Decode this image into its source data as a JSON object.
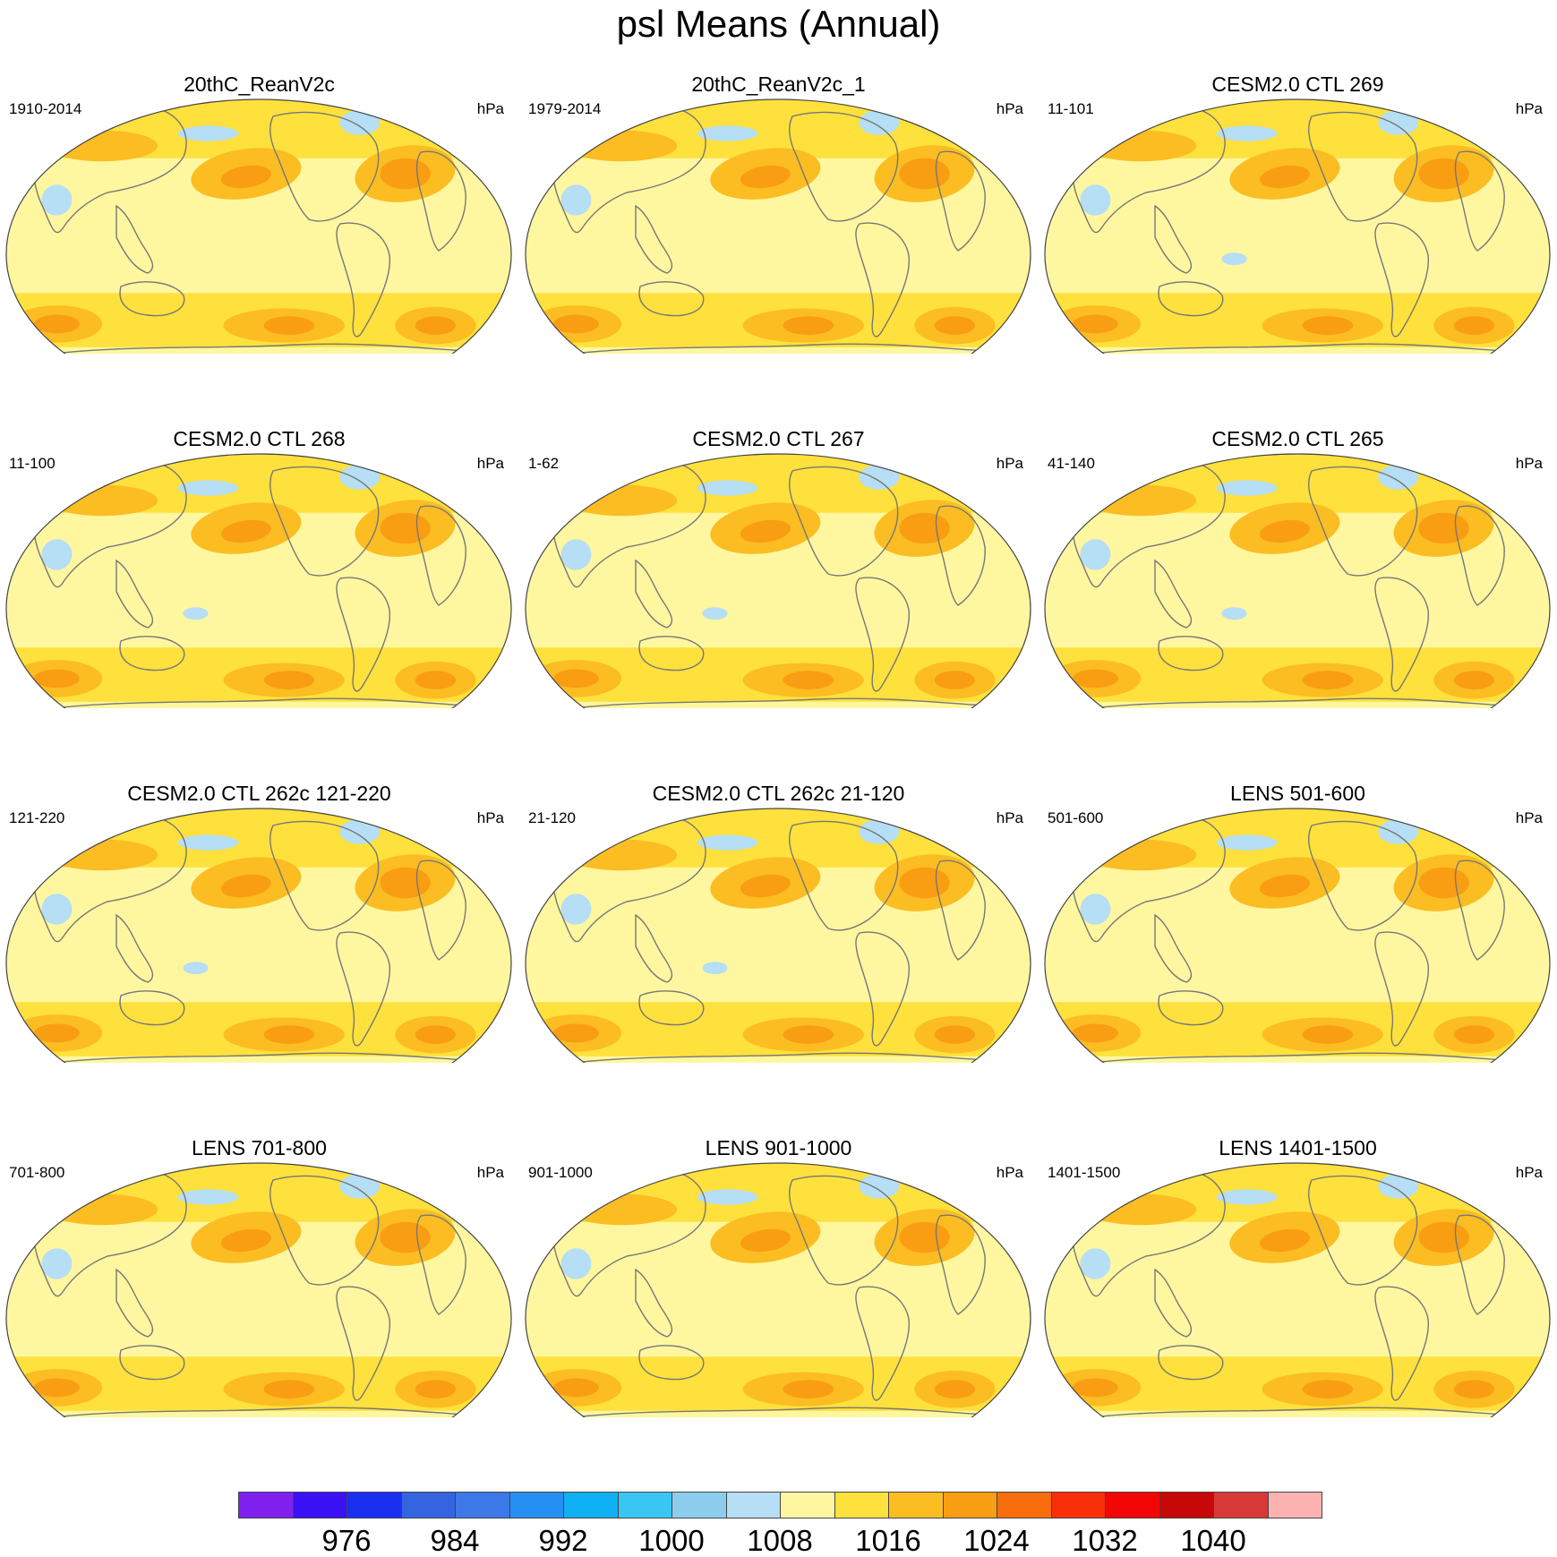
{
  "title": "psl Means (Annual)",
  "panels": [
    {
      "title": "20thC_ReanV2c",
      "years": "1910-2014",
      "units": "hPa",
      "variant": "rean_a"
    },
    {
      "title": "20thC_ReanV2c_1",
      "years": "1979-2014",
      "units": "hPa",
      "variant": "rean_b"
    },
    {
      "title": "CESM2.0 CTL 269",
      "years": "11-101",
      "units": "hPa",
      "variant": "cesm_strong"
    },
    {
      "title": "CESM2.0 CTL 268",
      "years": "11-100",
      "units": "hPa",
      "variant": "cesm"
    },
    {
      "title": "CESM2.0 CTL 267",
      "years": "1-62",
      "units": "hPa",
      "variant": "cesm"
    },
    {
      "title": "CESM2.0 CTL 265",
      "years": "41-140",
      "units": "hPa",
      "variant": "cesm"
    },
    {
      "title": "CESM2.0 CTL 262c 121-220",
      "years": "121-220",
      "units": "hPa",
      "variant": "cesm"
    },
    {
      "title": "CESM2.0 CTL 262c 21-120",
      "years": "21-120",
      "units": "hPa",
      "variant": "cesm"
    },
    {
      "title": "LENS 501-600",
      "years": "501-600",
      "units": "hPa",
      "variant": "lens_weak"
    },
    {
      "title": "LENS 701-800",
      "years": "701-800",
      "units": "hPa",
      "variant": "lens"
    },
    {
      "title": "LENS 901-1000",
      "years": "901-1000",
      "units": "hPa",
      "variant": "lens"
    },
    {
      "title": "LENS 1401-1500",
      "years": "1401-1500",
      "units": "hPa",
      "variant": "lens"
    }
  ],
  "colorbar": {
    "colors": [
      "#7f20ee",
      "#3a10f5",
      "#1a2ff0",
      "#3564e0",
      "#3c78e8",
      "#2590f2",
      "#10b0f5",
      "#3ac6f2",
      "#8ccdee",
      "#b6def4",
      "#fff7a0",
      "#fee13c",
      "#fbbd22",
      "#f99d12",
      "#f86d0c",
      "#f92f0a",
      "#f20606",
      "#c80808",
      "#d93838",
      "#fdb2b2"
    ],
    "labels": [
      "976",
      "984",
      "992",
      "1000",
      "1008",
      "1016",
      "1024",
      "1032",
      "1040"
    ]
  },
  "map_style": {
    "ocean_base": "#fff7a0",
    "coast_color": "#777777",
    "rim_color": "#444444"
  }
}
